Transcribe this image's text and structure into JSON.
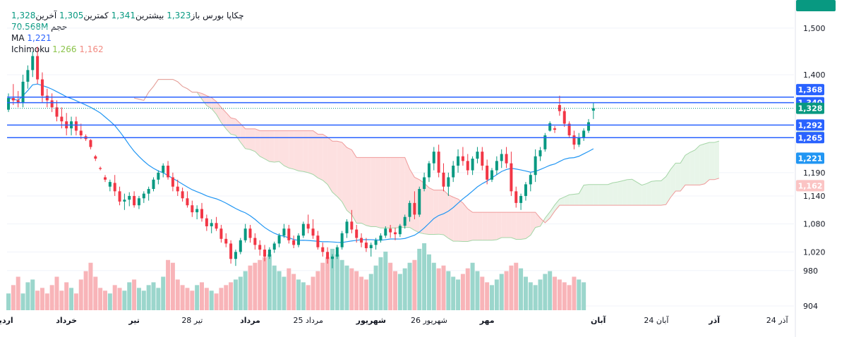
{
  "legend": {
    "symbol": "چکاپا بورس",
    "open_label": "باز",
    "open": "1,323",
    "high_label": "بیشترین",
    "high": "1,341",
    "low_label": "کمترین",
    "low": "1,305",
    "close_label": "آخرین",
    "close": "1,328",
    "volume_label": "حجم",
    "volume": "70.568M",
    "ma_label": "MA",
    "ma": "1,221",
    "ichimoku_label": "Ichimoku",
    "ichi_a": "1,266",
    "ichi_b": "1,162"
  },
  "colors": {
    "up": "#089981",
    "down": "#f23645",
    "ma": "#2196f3",
    "hline": "#2962ff",
    "cloud_up": "#e8f5e9",
    "cloud_down": "#fde0e0"
  },
  "chart_data": {
    "type": "candlestick",
    "ylim": [
      895,
      1530
    ],
    "y_ticks": [
      904,
      980,
      1020,
      1080,
      1140,
      1190,
      1400,
      1500
    ],
    "x_ticks": [
      {
        "label": "اردیبهشت",
        "bold": true,
        "bar": -3
      },
      {
        "label": "خرداد",
        "bold": true,
        "bar": 12
      },
      {
        "label": "تیر",
        "bold": true,
        "bar": 26
      },
      {
        "label": "28 تیر",
        "bold": false,
        "bar": 38
      },
      {
        "label": "مرداد",
        "bold": true,
        "bar": 50
      },
      {
        "label": "25 مرداد",
        "bold": false,
        "bar": 62
      },
      {
        "label": "شهریور",
        "bold": true,
        "bar": 75
      },
      {
        "label": "26 شهریور",
        "bold": false,
        "bar": 87
      },
      {
        "label": "مهر",
        "bold": true,
        "bar": 99
      },
      {
        "label": "آبان",
        "bold": true,
        "bar": 122
      },
      {
        "label": "24 آبان",
        "bold": false,
        "bar": 134
      },
      {
        "label": "آذر",
        "bold": true,
        "bar": 146
      },
      {
        "label": "24 آذر",
        "bold": false,
        "bar": 159
      }
    ],
    "horizontal_lines": [
      1352,
      1340,
      1292,
      1265
    ],
    "price_labels": [
      {
        "text": "1,368",
        "value": 1368,
        "color": "#2962ff"
      },
      {
        "text": "1,340",
        "value": 1340,
        "color": "#2962ff"
      },
      {
        "text": "1,328",
        "value": 1328,
        "color": "#089981"
      },
      {
        "text": "1,292",
        "value": 1292,
        "color": "#2962ff"
      },
      {
        "text": "1,266",
        "value": 1266,
        "color": "#a5d6a7"
      },
      {
        "text": "1,265",
        "value": 1265,
        "color": "#2962ff"
      },
      {
        "text": "1,221",
        "value": 1221,
        "color": "#2196f3"
      },
      {
        "text": "1,162",
        "value": 1162,
        "color": "#fbc4c4"
      }
    ],
    "volume_label": "70.568M",
    "ohlc": [
      [
        1325,
        1360,
        1320,
        1350
      ],
      [
        1350,
        1380,
        1335,
        1345
      ],
      [
        1345,
        1365,
        1330,
        1340
      ],
      [
        1340,
        1400,
        1330,
        1385
      ],
      [
        1385,
        1420,
        1370,
        1410
      ],
      [
        1410,
        1450,
        1395,
        1440
      ],
      [
        1440,
        1460,
        1380,
        1390
      ],
      [
        1390,
        1405,
        1340,
        1355
      ],
      [
        1355,
        1370,
        1330,
        1345
      ],
      [
        1345,
        1360,
        1320,
        1330
      ],
      [
        1330,
        1345,
        1300,
        1310
      ],
      [
        1310,
        1330,
        1285,
        1300
      ],
      [
        1300,
        1318,
        1270,
        1285
      ],
      [
        1285,
        1310,
        1270,
        1300
      ],
      [
        1300,
        1310,
        1270,
        1280
      ],
      [
        1280,
        1295,
        1262,
        1270
      ],
      [
        1268,
        1272,
        1258,
        1262
      ],
      [
        1260,
        1262,
        1240,
        1245
      ],
      [
        1225,
        1228,
        1215,
        1220
      ],
      [
        1200,
        1203,
        1195,
        1198
      ],
      [
        1180,
        1185,
        1170,
        1175
      ],
      [
        1160,
        1175,
        1150,
        1170
      ],
      [
        1168,
        1185,
        1140,
        1150
      ],
      [
        1150,
        1160,
        1120,
        1128
      ],
      [
        1128,
        1145,
        1110,
        1132
      ],
      [
        1132,
        1148,
        1118,
        1140
      ],
      [
        1140,
        1150,
        1115,
        1120
      ],
      [
        1120,
        1140,
        1112,
        1135
      ],
      [
        1135,
        1150,
        1125,
        1145
      ],
      [
        1145,
        1160,
        1130,
        1155
      ],
      [
        1155,
        1180,
        1150,
        1175
      ],
      [
        1175,
        1195,
        1165,
        1190
      ],
      [
        1190,
        1210,
        1180,
        1205
      ],
      [
        1205,
        1215,
        1175,
        1180
      ],
      [
        1180,
        1190,
        1150,
        1160
      ],
      [
        1160,
        1175,
        1140,
        1150
      ],
      [
        1150,
        1158,
        1128,
        1135
      ],
      [
        1135,
        1150,
        1115,
        1120
      ],
      [
        1120,
        1130,
        1095,
        1105
      ],
      [
        1105,
        1120,
        1090,
        1112
      ],
      [
        1112,
        1125,
        1085,
        1092
      ],
      [
        1092,
        1100,
        1065,
        1075
      ],
      [
        1075,
        1090,
        1060,
        1082
      ],
      [
        1082,
        1095,
        1065,
        1070
      ],
      [
        1070,
        1078,
        1040,
        1048
      ],
      [
        1048,
        1060,
        1030,
        1038
      ],
      [
        1038,
        1045,
        995,
        1005
      ],
      [
        1005,
        1025,
        990,
        1020
      ],
      [
        1020,
        1050,
        1015,
        1045
      ],
      [
        1045,
        1080,
        1040,
        1070
      ],
      [
        1070,
        1078,
        1040,
        1050
      ],
      [
        1050,
        1060,
        1025,
        1035
      ],
      [
        1035,
        1045,
        1012,
        1025
      ],
      [
        1025,
        1035,
        1000,
        1010
      ],
      [
        1010,
        1030,
        1005,
        1025
      ],
      [
        1025,
        1042,
        1018,
        1038
      ],
      [
        1038,
        1060,
        1030,
        1055
      ],
      [
        1055,
        1080,
        1050,
        1070
      ],
      [
        1070,
        1078,
        1038,
        1045
      ],
      [
        1045,
        1055,
        1028,
        1035
      ],
      [
        1035,
        1060,
        1030,
        1055
      ],
      [
        1055,
        1085,
        1050,
        1080
      ],
      [
        1080,
        1100,
        1060,
        1070
      ],
      [
        1070,
        1090,
        1048,
        1055
      ],
      [
        1055,
        1065,
        1025,
        1030
      ],
      [
        1030,
        1040,
        1010,
        1020
      ],
      [
        1020,
        1030,
        995,
        1005
      ],
      [
        1005,
        1015,
        985,
        1010
      ],
      [
        1010,
        1035,
        1005,
        1030
      ],
      [
        1030,
        1065,
        1025,
        1060
      ],
      [
        1060,
        1090,
        1050,
        1085
      ],
      [
        1085,
        1110,
        1060,
        1068
      ],
      [
        1068,
        1078,
        1040,
        1050
      ],
      [
        1050,
        1060,
        1030,
        1040
      ],
      [
        1040,
        1050,
        1020,
        1028
      ],
      [
        1028,
        1040,
        1010,
        1035
      ],
      [
        1035,
        1050,
        1025,
        1045
      ],
      [
        1045,
        1060,
        1040,
        1055
      ],
      [
        1055,
        1075,
        1050,
        1070
      ],
      [
        1070,
        1078,
        1050,
        1062
      ],
      [
        1062,
        1072,
        1045,
        1058
      ],
      [
        1058,
        1080,
        1052,
        1076
      ],
      [
        1076,
        1100,
        1070,
        1095
      ],
      [
        1095,
        1130,
        1085,
        1125
      ],
      [
        1125,
        1150,
        1090,
        1100
      ],
      [
        1100,
        1160,
        1095,
        1155
      ],
      [
        1155,
        1190,
        1150,
        1180
      ],
      [
        1180,
        1215,
        1170,
        1210
      ],
      [
        1210,
        1245,
        1195,
        1235
      ],
      [
        1235,
        1250,
        1180,
        1190
      ],
      [
        1190,
        1210,
        1150,
        1160
      ],
      [
        1160,
        1190,
        1140,
        1180
      ],
      [
        1180,
        1215,
        1170,
        1205
      ],
      [
        1205,
        1240,
        1190,
        1225
      ],
      [
        1225,
        1245,
        1205,
        1215
      ],
      [
        1215,
        1230,
        1185,
        1195
      ],
      [
        1195,
        1225,
        1185,
        1220
      ],
      [
        1220,
        1245,
        1210,
        1235
      ],
      [
        1235,
        1245,
        1195,
        1205
      ],
      [
        1205,
        1218,
        1165,
        1175
      ],
      [
        1175,
        1200,
        1170,
        1195
      ],
      [
        1195,
        1225,
        1185,
        1215
      ],
      [
        1215,
        1240,
        1200,
        1230
      ],
      [
        1230,
        1245,
        1200,
        1210
      ],
      [
        1210,
        1235,
        1140,
        1150
      ],
      [
        1150,
        1160,
        1115,
        1125
      ],
      [
        1125,
        1145,
        1110,
        1140
      ],
      [
        1140,
        1170,
        1130,
        1165
      ],
      [
        1165,
        1190,
        1150,
        1185
      ],
      [
        1185,
        1240,
        1170,
        1225
      ],
      [
        1225,
        1245,
        1215,
        1238
      ],
      [
        1240,
        1275,
        1235,
        1270
      ],
      [
        1280,
        1300,
        1278,
        1296
      ],
      [
        1285,
        1290,
        1275,
        1282
      ],
      [
        1335,
        1355,
        1312,
        1322
      ],
      [
        1322,
        1330,
        1288,
        1295
      ],
      [
        1295,
        1300,
        1265,
        1270
      ],
      [
        1270,
        1280,
        1240,
        1250
      ],
      [
        1250,
        1275,
        1245,
        1265
      ],
      [
        1265,
        1285,
        1258,
        1280
      ],
      [
        1280,
        1305,
        1275,
        1298
      ],
      [
        1323,
        1341,
        1305,
        1328
      ]
    ],
    "volume": [
      30,
      45,
      60,
      30,
      50,
      55,
      35,
      40,
      30,
      45,
      60,
      35,
      50,
      40,
      30,
      55,
      70,
      85,
      60,
      40,
      35,
      30,
      45,
      40,
      35,
      50,
      55,
      40,
      35,
      45,
      50,
      40,
      60,
      90,
      85,
      55,
      45,
      40,
      35,
      45,
      50,
      40,
      35,
      30,
      40,
      45,
      50,
      55,
      60,
      70,
      80,
      85,
      90,
      95,
      100,
      80,
      70,
      60,
      75,
      65,
      55,
      50,
      45,
      60,
      70,
      85,
      95,
      110,
      100,
      90,
      80,
      75,
      70,
      60,
      55,
      65,
      80,
      95,
      105,
      85,
      70,
      65,
      75,
      85,
      90,
      110,
      120,
      100,
      85,
      75,
      80,
      70,
      60,
      55,
      65,
      75,
      85,
      70,
      60,
      50,
      45,
      55,
      65,
      70,
      80,
      85,
      75,
      60,
      50,
      45,
      55,
      65,
      70,
      60,
      55,
      50,
      45,
      60,
      55,
      50
    ]
  }
}
